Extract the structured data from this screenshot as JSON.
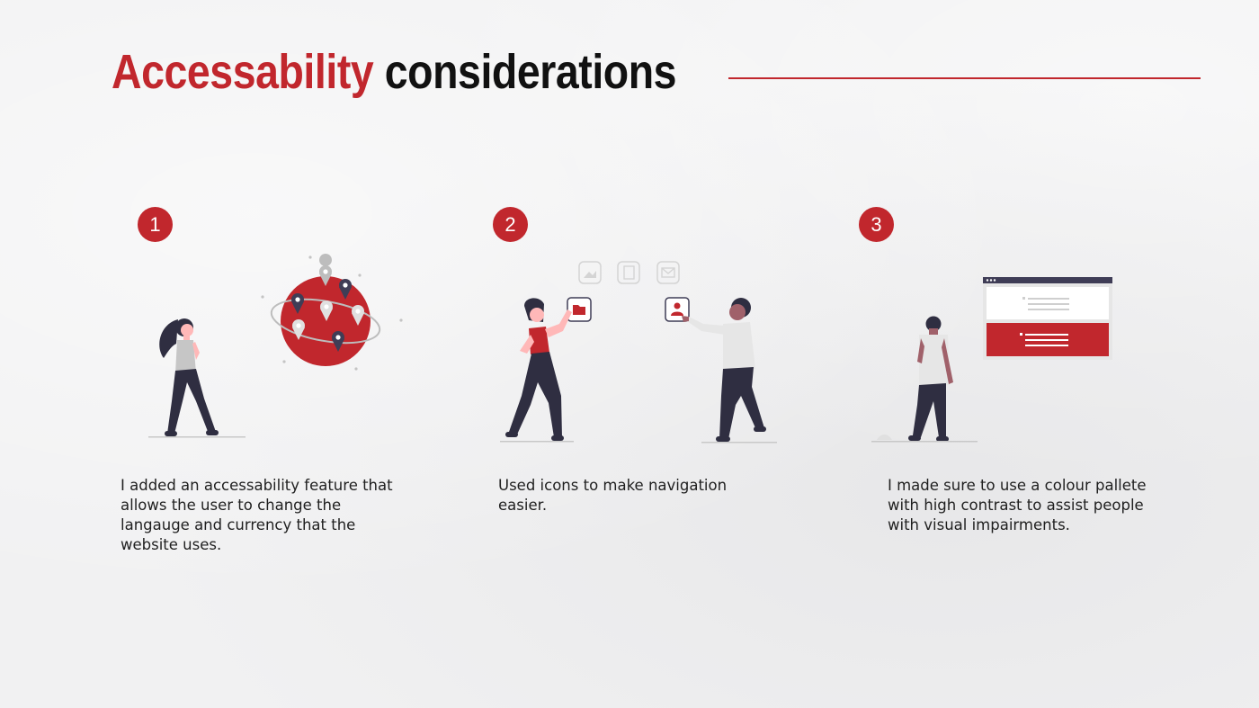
{
  "title": {
    "highlight": "Accessability",
    "rest": "considerations"
  },
  "colors": {
    "accent": "#c1272d",
    "text": "#111111",
    "background": "#f1f1f2",
    "dark_figure": "#2f2e41",
    "skin_light": "#ffb8b8",
    "skin_dark": "#a0616a",
    "shirt_gray": "#e6e6e6"
  },
  "steps": [
    {
      "number": "1",
      "text": "I added an accessability feature that allows the user to change the langauge and currency that the website uses.",
      "illustration": "woman-with-globe-map-pins"
    },
    {
      "number": "2",
      "text": "Used icons to make navigation easier.",
      "illustration": "two-people-tapping-icons"
    },
    {
      "number": "3",
      "text": "I made sure to use a colour pallete with high contrast to assist people with visual impairments.",
      "illustration": "man-viewing-web-page"
    }
  ]
}
